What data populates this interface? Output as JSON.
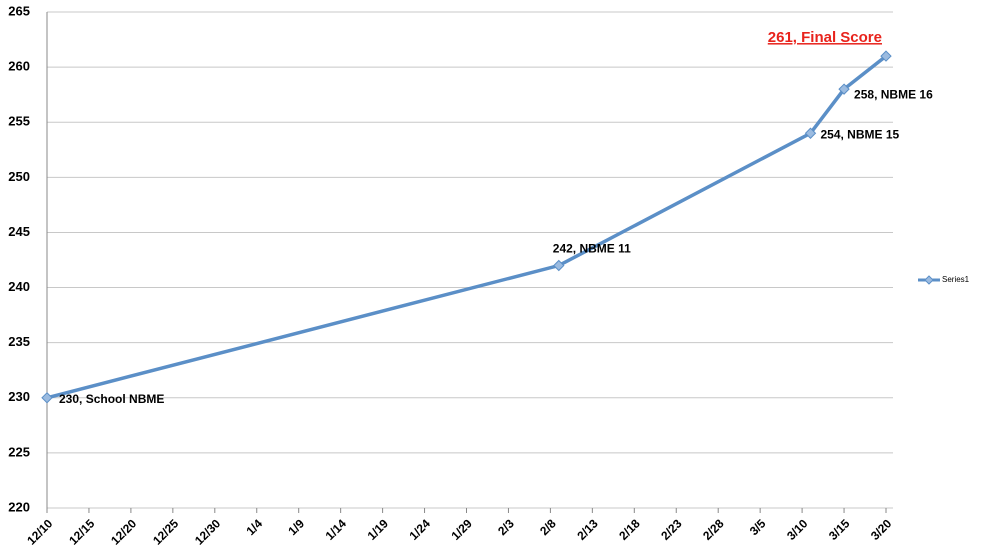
{
  "chart_data": {
    "type": "line",
    "x": [
      "12/10",
      "2/9",
      "3/11",
      "3/15",
      "3/20"
    ],
    "series": [
      {
        "name": "Series1",
        "color": "#5b8fc7",
        "values": [
          230,
          242,
          254,
          258,
          261
        ],
        "value_labels": [
          "230, School NBME",
          "242, NBME 11",
          "254, NBME 15",
          "258, NBME 16",
          "261, Final Score"
        ]
      }
    ],
    "xlim": [
      "12/10",
      "3/20"
    ],
    "xticks": [
      "12/10",
      "12/15",
      "12/20",
      "12/25",
      "12/30",
      "1/4",
      "1/9",
      "1/14",
      "1/19",
      "1/24",
      "1/29",
      "2/3",
      "2/8",
      "2/13",
      "2/18",
      "2/23",
      "2/28",
      "3/5",
      "3/10",
      "3/15",
      "3/20"
    ],
    "ylim": [
      220,
      265
    ],
    "yticks": [
      220,
      225,
      230,
      235,
      240,
      245,
      250,
      255,
      260,
      265
    ],
    "grid": true,
    "legend": "right"
  }
}
